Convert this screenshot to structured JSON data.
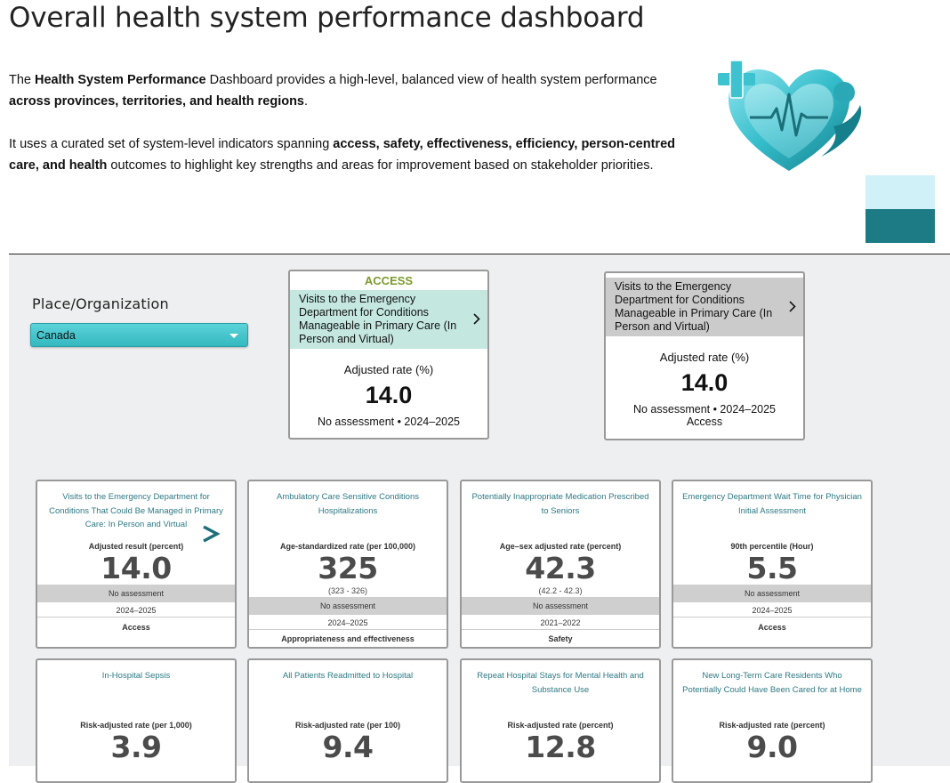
{
  "page": {
    "title": "Overall health system performance dashboard"
  },
  "intro": {
    "p1": [
      "The ",
      "Health System Performance",
      " Dashboard provides a high-level, balanced view of health system performance ",
      "across provinces, territories, and health regions",
      "."
    ],
    "p2": [
      "It uses a curated set of system-level indicators spanning ",
      "access, safety, effectiveness, efficiency, person-centred care, and health",
      " outcomes to highlight key strengths and areas for improvement based on stakeholder priorities."
    ]
  },
  "colors": {
    "swatch_light": "#cff1f7",
    "swatch_dark": "#1c7b84",
    "access_green": "#7c9a2b",
    "card_title": "#2d7a84"
  },
  "filter": {
    "label": "Place/Organization",
    "selected": "Canada"
  },
  "featured": [
    {
      "dimension": "ACCESS",
      "indicator": "Visits to the Emergency Department for Conditions Manageable in Primary Care (In Person and Virtual)",
      "metric_label": "Adjusted rate (%)",
      "value": "14.0",
      "assessment": "No assessment • 2024–2025",
      "header_color": "#c4e7e0"
    },
    {
      "dimension": "",
      "indicator": "Visits to the Emergency Department for Conditions Manageable in Primary Care (In Person and Virtual)",
      "metric_label": "Adjusted rate (%)",
      "value": "14.0",
      "assessment": "No assessment • 2024–2025",
      "dimension_footer": "Access",
      "header_color": "#cbcbcb"
    }
  ],
  "cards": [
    {
      "title": "Visits to the Emergency Department for Conditions That Could Be Managed in Primary Care: In Person and Virtual",
      "metric_label": "Adjusted result (percent)",
      "value": "14.0",
      "ci": "",
      "assessment": "No assessment",
      "period": "2024–2025",
      "dimension": "Access",
      "has_arrow": true
    },
    {
      "title": "Ambulatory Care Sensitive Conditions Hospitalizations",
      "metric_label": "Age-standardized rate (per 100,000)",
      "value": "325",
      "ci": "(323 - 326)",
      "assessment": "No assessment",
      "period": "2024–2025",
      "dimension": "Appropriateness and effectiveness"
    },
    {
      "title": "Potentially Inappropriate Medication Prescribed to Seniors",
      "metric_label": "Age–sex adjusted rate (percent)",
      "value": "42.3",
      "ci": "(42.2 - 42.3)",
      "assessment": "No assessment",
      "period": "2021–2022",
      "dimension": "Safety"
    },
    {
      "title": "Emergency Department Wait Time for Physician Initial Assessment",
      "metric_label": "90th percentile (Hour)",
      "value": "5.5",
      "ci": "",
      "assessment": "No assessment",
      "period": "2024–2025",
      "dimension": "Access"
    },
    {
      "title": "In-Hospital Sepsis",
      "metric_label": "Risk-adjusted rate (per 1,000)",
      "value": "3.9"
    },
    {
      "title": "All Patients Readmitted to Hospital",
      "metric_label": "Risk-adjusted rate (per 100)",
      "value": "9.4"
    },
    {
      "title": "Repeat Hospital Stays for Mental Health and Substance Use",
      "metric_label": "Risk-adjusted rate (percent)",
      "value": "12.8"
    },
    {
      "title": "New Long-Term Care Residents Who Potentially Could Have Been Cared for at Home",
      "metric_label": "Risk-adjusted rate (percent)",
      "value": "9.0"
    }
  ]
}
